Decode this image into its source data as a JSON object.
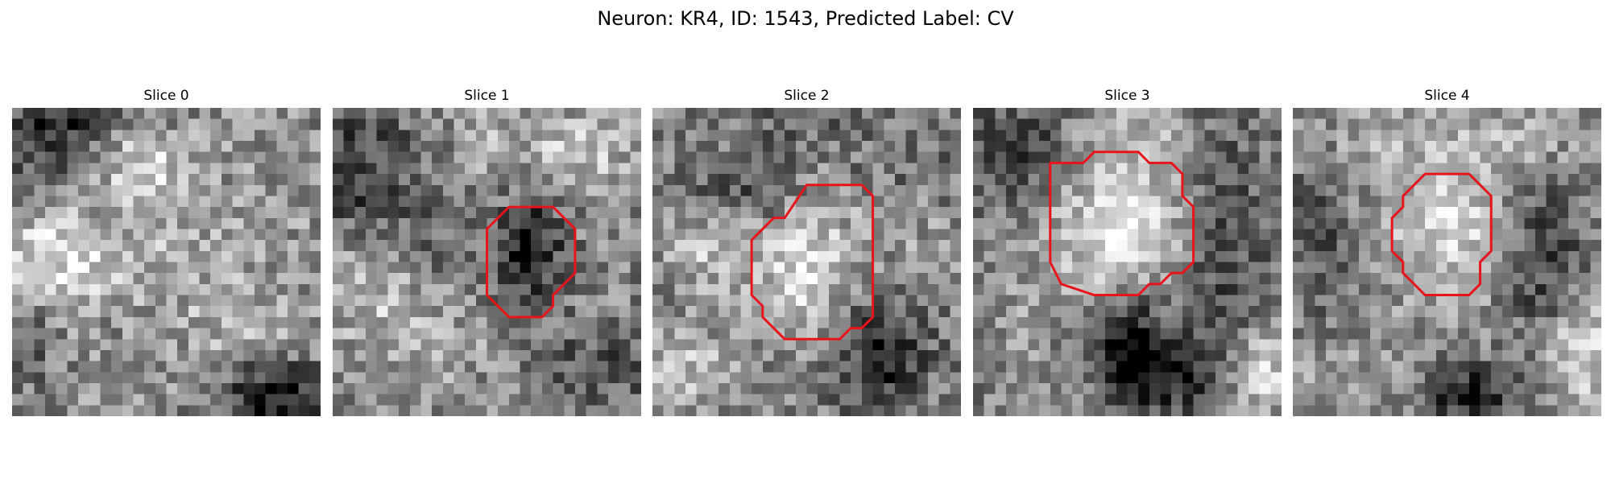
{
  "title": "Neuron: KR4, ID: 1543, Predicted Label: CV",
  "contour_color": "#e8141c",
  "slices": [
    {
      "label": "Slice 0",
      "has_contour": false,
      "contour": []
    },
    {
      "label": "Slice 1",
      "has_contour": true,
      "contour": [
        [
          16,
          9
        ],
        [
          20,
          9
        ],
        [
          22,
          11
        ],
        [
          22,
          15
        ],
        [
          20,
          17
        ],
        [
          20,
          18
        ],
        [
          19,
          19
        ],
        [
          16,
          19
        ],
        [
          14,
          17
        ],
        [
          14,
          11
        ]
      ]
    },
    {
      "label": "Slice 2",
      "has_contour": true,
      "contour": [
        [
          14,
          7
        ],
        [
          19,
          7
        ],
        [
          20,
          8
        ],
        [
          20,
          19
        ],
        [
          19,
          20
        ],
        [
          18,
          20
        ],
        [
          17,
          21
        ],
        [
          12,
          21
        ],
        [
          10,
          19
        ],
        [
          10,
          18
        ],
        [
          9,
          17
        ],
        [
          9,
          12
        ],
        [
          11,
          10
        ],
        [
          12,
          10
        ]
      ]
    },
    {
      "label": "Slice 3",
      "has_contour": true,
      "contour": [
        [
          7,
          5
        ],
        [
          10,
          5
        ],
        [
          11,
          4
        ],
        [
          15,
          4
        ],
        [
          16,
          5
        ],
        [
          18,
          5
        ],
        [
          19,
          6
        ],
        [
          19,
          8
        ],
        [
          20,
          9
        ],
        [
          20,
          14
        ],
        [
          19,
          15
        ],
        [
          18,
          15
        ],
        [
          17,
          16
        ],
        [
          16,
          16
        ],
        [
          15,
          17
        ],
        [
          11,
          17
        ],
        [
          8,
          16
        ],
        [
          7,
          14
        ]
      ]
    },
    {
      "label": "Slice 4",
      "has_contour": true,
      "contour": [
        [
          12,
          6
        ],
        [
          16,
          6
        ],
        [
          18,
          8
        ],
        [
          18,
          13
        ],
        [
          17,
          14
        ],
        [
          17,
          16
        ],
        [
          16,
          17
        ],
        [
          12,
          17
        ],
        [
          11,
          16
        ],
        [
          10,
          15
        ],
        [
          10,
          14
        ],
        [
          9,
          13
        ],
        [
          9,
          10
        ],
        [
          10,
          9
        ],
        [
          10,
          8
        ]
      ]
    }
  ]
}
